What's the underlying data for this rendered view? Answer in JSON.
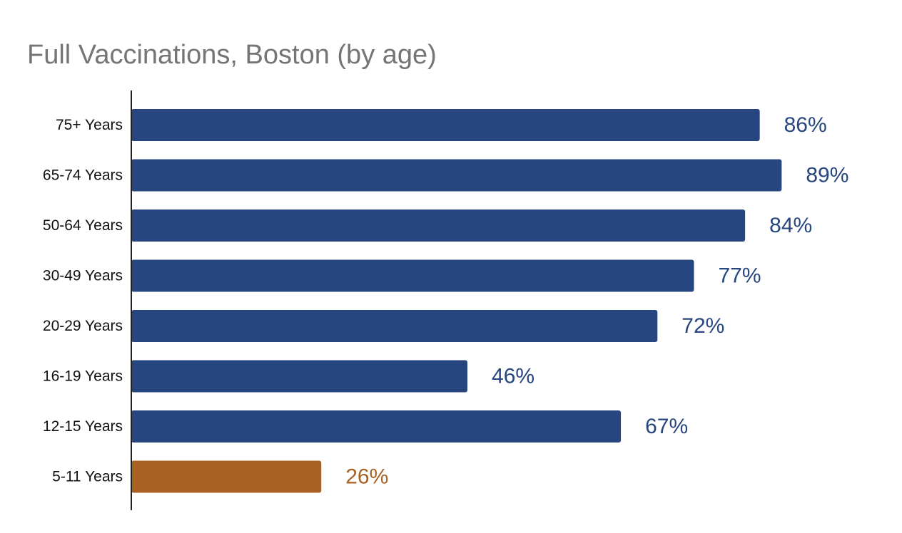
{
  "chart_data": {
    "type": "bar",
    "orientation": "horizontal",
    "title": "Full Vaccinations, Boston (by age)",
    "xlabel": "",
    "ylabel": "",
    "xlim": [
      0,
      100
    ],
    "grid": false,
    "legend": "none",
    "categories": [
      "75+ Years",
      "65-74 Years",
      "50-64 Years",
      "30-49 Years",
      "20-29 Years",
      "16-19 Years",
      "12-15 Years",
      "5-11 Years"
    ],
    "values": [
      86,
      89,
      84,
      77,
      72,
      46,
      67,
      26
    ],
    "data_labels": [
      "86%",
      "89%",
      "84%",
      "77%",
      "72%",
      "46%",
      "67%",
      "26%"
    ],
    "bar_colors": [
      "#27467f",
      "#27467f",
      "#27467f",
      "#27467f",
      "#27467f",
      "#27467f",
      "#27467f",
      "#a86123"
    ],
    "axis_color": "#222222"
  }
}
